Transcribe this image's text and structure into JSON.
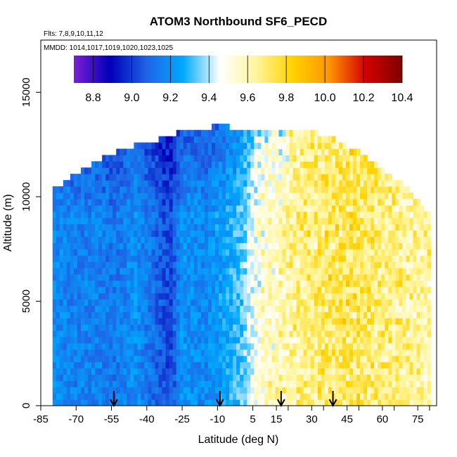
{
  "chart_data": {
    "type": "heatmap",
    "title": "ATOM3 Northbound SF6_PECD",
    "flights_note": "Flts: 7,8,9,10,11,12",
    "dates_note": "MMDD: 1014,1017,1019,1020,1023,1025",
    "xlabel": "Latitude (deg N)",
    "ylabel": "Altitude (m)",
    "xlim": [
      -85,
      83
    ],
    "ylim": [
      0,
      17500
    ],
    "x_ticks": [
      -85,
      -70,
      -55,
      -40,
      -25,
      -10,
      5,
      15,
      30,
      45,
      60,
      75
    ],
    "y_ticks": [
      0,
      5000,
      10000,
      15000
    ],
    "colorbar": {
      "range": [
        8.7,
        10.4
      ],
      "ticks": [
        "8.8",
        "9.0",
        "9.2",
        "9.4",
        "9.6",
        "9.8",
        "10.0",
        "10.2",
        "10.4"
      ],
      "stops": [
        "#7b1fd4",
        "#0000b8",
        "#1e64e6",
        "#00aaff",
        "#ffffff",
        "#fff59a",
        "#ffd200",
        "#ff9500",
        "#d40000",
        "#7d0000"
      ]
    },
    "arrow_latitudes": [
      -54,
      -9,
      17,
      39
    ],
    "profile_top_altitude": [
      {
        "lat": -78,
        "alt": 10300
      },
      {
        "lat": -72,
        "alt": 10900
      },
      {
        "lat": -65,
        "alt": 11300
      },
      {
        "lat": -55,
        "alt": 11900
      },
      {
        "lat": -45,
        "alt": 12300
      },
      {
        "lat": -35,
        "alt": 12600
      },
      {
        "lat": -25,
        "alt": 13000
      },
      {
        "lat": -15,
        "alt": 13000
      },
      {
        "lat": -10,
        "alt": 13400
      },
      {
        "lat": 0,
        "alt": 13000
      },
      {
        "lat": 15,
        "alt": 13000
      },
      {
        "lat": 30,
        "alt": 13000
      },
      {
        "lat": 40,
        "alt": 12600
      },
      {
        "lat": 50,
        "alt": 12000
      },
      {
        "lat": 60,
        "alt": 11200
      },
      {
        "lat": 70,
        "alt": 10300
      },
      {
        "lat": 78,
        "alt": 9300
      }
    ],
    "zonal_mean_sf6": [
      {
        "lat": -78,
        "value": 9.18
      },
      {
        "lat": -70,
        "value": 9.15
      },
      {
        "lat": -60,
        "value": 9.16
      },
      {
        "lat": -55,
        "value": 9.12
      },
      {
        "lat": -45,
        "value": 9.2
      },
      {
        "lat": -35,
        "value": 9.08
      },
      {
        "lat": -30,
        "value": 9.02
      },
      {
        "lat": -25,
        "value": 9.2
      },
      {
        "lat": -15,
        "value": 9.18
      },
      {
        "lat": -8,
        "value": 9.24
      },
      {
        "lat": 0,
        "value": 9.32
      },
      {
        "lat": 5,
        "value": 9.45
      },
      {
        "lat": 10,
        "value": 9.55
      },
      {
        "lat": 20,
        "value": 9.62
      },
      {
        "lat": 30,
        "value": 9.68
      },
      {
        "lat": 40,
        "value": 9.72
      },
      {
        "lat": 50,
        "value": 9.72
      },
      {
        "lat": 60,
        "value": 9.68
      },
      {
        "lat": 70,
        "value": 9.64
      },
      {
        "lat": 78,
        "value": 9.62
      }
    ]
  }
}
